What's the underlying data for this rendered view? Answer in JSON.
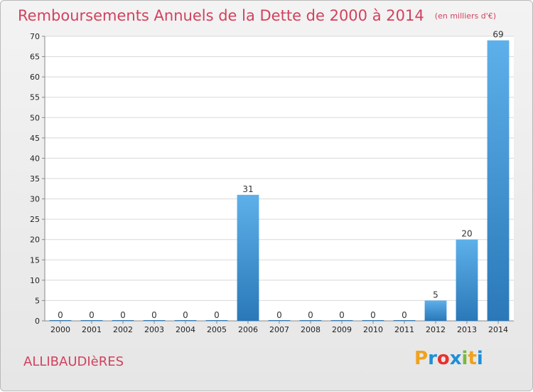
{
  "chart_data": {
    "type": "bar",
    "title": "Remboursements Annuels de la Dette de 2000 à 2014",
    "subtitle": "(en milliers d'€)",
    "categories": [
      "2000",
      "2001",
      "2002",
      "2003",
      "2004",
      "2005",
      "2006",
      "2007",
      "2008",
      "2009",
      "2010",
      "2011",
      "2012",
      "2013",
      "2014"
    ],
    "values": [
      0,
      0,
      0,
      0,
      0,
      0,
      31,
      0,
      0,
      0,
      0,
      0,
      5,
      20,
      69
    ],
    "ylim": [
      0,
      70
    ],
    "yticks": [
      0,
      5,
      10,
      15,
      20,
      25,
      30,
      35,
      40,
      45,
      50,
      55,
      60,
      65,
      70
    ],
    "grid": true,
    "bar_color": "#3a8dd2",
    "title_color": "#d2415d"
  },
  "footer": {
    "commune": "ALLIBAUDIèRES",
    "logo": [
      "P",
      "r",
      "o",
      "x",
      "i",
      "t",
      "i"
    ],
    "logo_colors": [
      "#f0a21d",
      "#1e8fd8",
      "#e8312c",
      "#1e8fd8",
      "#79b83a",
      "#f0a21d",
      "#1e8fd8"
    ]
  }
}
